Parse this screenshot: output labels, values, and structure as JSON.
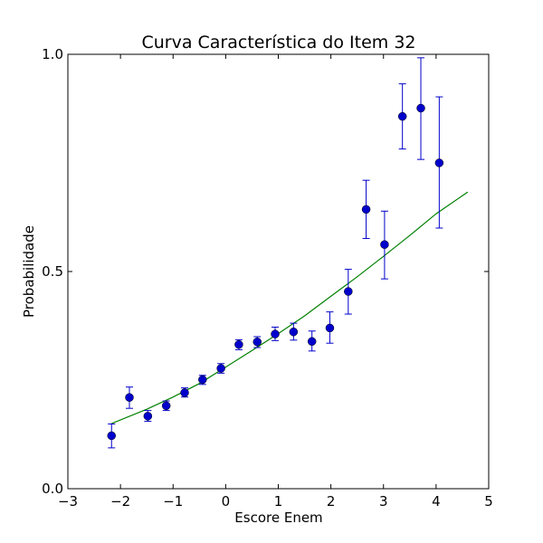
{
  "chart_data": {
    "type": "scatter",
    "title": "Curva Característica do Item 32",
    "xlabel": "Escore Enem",
    "ylabel": "Probabilidade",
    "xlim": [
      -3,
      5
    ],
    "ylim": [
      0.0,
      1.0
    ],
    "xticks": [
      -3,
      -2,
      -1,
      0,
      1,
      2,
      3,
      4,
      5
    ],
    "xtick_labels": [
      "−3",
      "−2",
      "−1",
      "0",
      "1",
      "2",
      "3",
      "4",
      "5"
    ],
    "yticks": [
      0.0,
      0.5,
      1.0
    ],
    "ytick_labels": [
      "0.0",
      "0.5",
      "1.0"
    ],
    "grid": false,
    "series": [
      {
        "kind": "points_with_errorbars",
        "color": "#0000cc",
        "points": [
          {
            "x": -2.17,
            "y": 0.122,
            "ylow": 0.094,
            "yhigh": 0.149
          },
          {
            "x": -1.83,
            "y": 0.21,
            "ylow": 0.185,
            "yhigh": 0.234
          },
          {
            "x": -1.48,
            "y": 0.167,
            "ylow": 0.155,
            "yhigh": 0.18
          },
          {
            "x": -1.13,
            "y": 0.191,
            "ylow": 0.18,
            "yhigh": 0.202
          },
          {
            "x": -0.78,
            "y": 0.221,
            "ylow": 0.211,
            "yhigh": 0.232
          },
          {
            "x": -0.44,
            "y": 0.251,
            "ylow": 0.24,
            "yhigh": 0.261
          },
          {
            "x": -0.09,
            "y": 0.277,
            "ylow": 0.266,
            "yhigh": 0.288
          },
          {
            "x": 0.25,
            "y": 0.332,
            "ylow": 0.32,
            "yhigh": 0.343
          },
          {
            "x": 0.6,
            "y": 0.338,
            "ylow": 0.325,
            "yhigh": 0.35
          },
          {
            "x": 0.94,
            "y": 0.356,
            "ylow": 0.341,
            "yhigh": 0.372
          },
          {
            "x": 1.29,
            "y": 0.361,
            "ylow": 0.342,
            "yhigh": 0.381
          },
          {
            "x": 1.64,
            "y": 0.339,
            "ylow": 0.317,
            "yhigh": 0.363
          },
          {
            "x": 1.98,
            "y": 0.37,
            "ylow": 0.335,
            "yhigh": 0.407
          },
          {
            "x": 2.33,
            "y": 0.454,
            "ylow": 0.402,
            "yhigh": 0.505
          },
          {
            "x": 2.67,
            "y": 0.643,
            "ylow": 0.576,
            "yhigh": 0.71
          },
          {
            "x": 3.02,
            "y": 0.562,
            "ylow": 0.483,
            "yhigh": 0.639
          },
          {
            "x": 3.36,
            "y": 0.857,
            "ylow": 0.782,
            "yhigh": 0.932
          },
          {
            "x": 3.71,
            "y": 0.876,
            "ylow": 0.758,
            "yhigh": 0.992
          },
          {
            "x": 4.06,
            "y": 0.75,
            "ylow": 0.6,
            "yhigh": 0.902
          }
        ]
      },
      {
        "kind": "line",
        "color": "#008000",
        "points": [
          {
            "x": -2.17,
            "y": 0.15
          },
          {
            "x": -1.5,
            "y": 0.183
          },
          {
            "x": -1.0,
            "y": 0.211
          },
          {
            "x": -0.5,
            "y": 0.242
          },
          {
            "x": 0.0,
            "y": 0.28
          },
          {
            "x": 0.5,
            "y": 0.318
          },
          {
            "x": 1.0,
            "y": 0.357
          },
          {
            "x": 1.5,
            "y": 0.398
          },
          {
            "x": 2.0,
            "y": 0.443
          },
          {
            "x": 2.5,
            "y": 0.488
          },
          {
            "x": 3.0,
            "y": 0.535
          },
          {
            "x": 3.5,
            "y": 0.583
          },
          {
            "x": 4.0,
            "y": 0.633
          },
          {
            "x": 4.6,
            "y": 0.683
          }
        ]
      }
    ]
  }
}
